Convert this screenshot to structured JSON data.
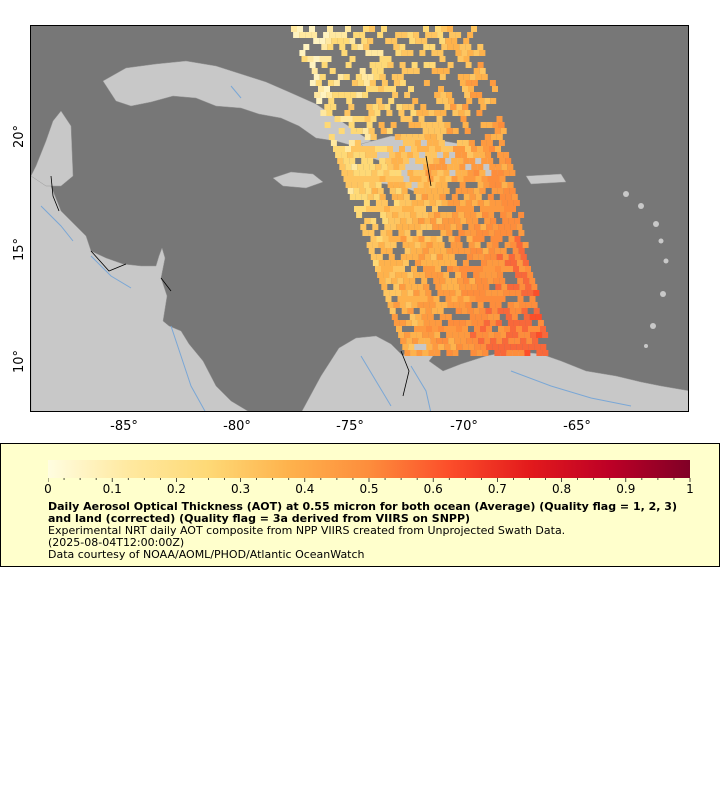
{
  "map": {
    "y_axis_labels": [
      "20°",
      "15°",
      "10°"
    ],
    "x_axis_labels": [
      "-85°",
      "-80°",
      "-75°",
      "-70°",
      "-65°"
    ],
    "colors": {
      "ocean": "#777777",
      "land": "#c8c8c8",
      "river": "#7aa7d6",
      "border": "#000000"
    }
  },
  "colorbar": {
    "tick_labels": [
      "0",
      "0.1",
      "0.2",
      "0.3",
      "0.4",
      "0.5",
      "0.6",
      "0.7",
      "0.8",
      "0.9",
      "1"
    ],
    "colors": [
      "#fffde0",
      "#ffe9a0",
      "#fed976",
      "#feb24c",
      "#fd8d3c",
      "#fc4e2a",
      "#e31a1c",
      "#bd0026",
      "#800026"
    ]
  },
  "legend": {
    "title": "Daily Aerosol Optical Thickness (AOT) at 0.55 micron for both ocean (Average) (Quality flag = 1, 2, 3) and land (corrected) (Quality flag = 3a derived from VIIRS on SNPP)",
    "lines": [
      "Experimental NRT daily AOT composite from NPP VIIRS created from Unprojected Swath Data.",
      "(2025-08-04T12:00:00Z)",
      "Data courtesy of NOAA/AOML/PHOD/Atlantic OceanWatch"
    ]
  }
}
